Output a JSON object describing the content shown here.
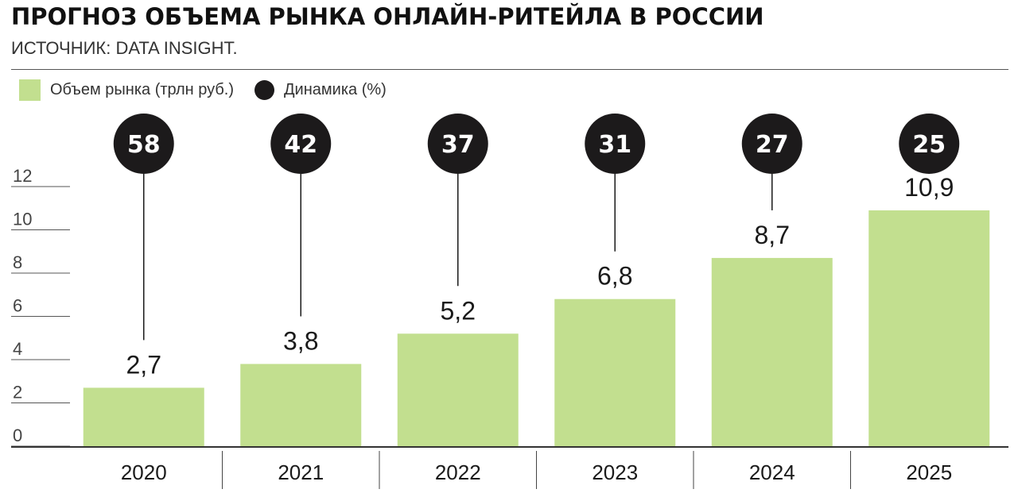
{
  "header": {
    "title": "ПРОГНОЗ ОБЪЕМА РЫНКА ОНЛАЙН-РИТЕЙЛА В РОССИИ",
    "source": "ИСТОЧНИК: DATA INSIGHT."
  },
  "legend": {
    "items": [
      {
        "label": "Объем рынка (трлн руб.)",
        "shape": "square",
        "color": "#c2df8f"
      },
      {
        "label": "Динамика (%)",
        "shape": "circle",
        "color": "#1c1a1b"
      }
    ]
  },
  "chart_data": {
    "type": "bar",
    "categories": [
      "2020",
      "2021",
      "2022",
      "2023",
      "2024",
      "2025"
    ],
    "series": [
      {
        "name": "Объем рынка (трлн руб.)",
        "values": [
          2.7,
          3.8,
          5.2,
          6.8,
          8.7,
          10.9
        ],
        "value_labels": [
          "2,7",
          "3,8",
          "5,2",
          "6,8",
          "8,7",
          "10,9"
        ],
        "color": "#c2df8f"
      },
      {
        "name": "Динамика (%)",
        "values": [
          58,
          42,
          37,
          31,
          27,
          25
        ],
        "value_labels": [
          "58",
          "42",
          "37",
          "31",
          "27",
          "25"
        ],
        "color": "#1c1a1b"
      }
    ],
    "ylim": [
      0,
      12
    ],
    "yticks": [
      "0",
      "2",
      "4",
      "6",
      "8",
      "10",
      "12"
    ],
    "grid": true,
    "legend_position": "top-left"
  }
}
